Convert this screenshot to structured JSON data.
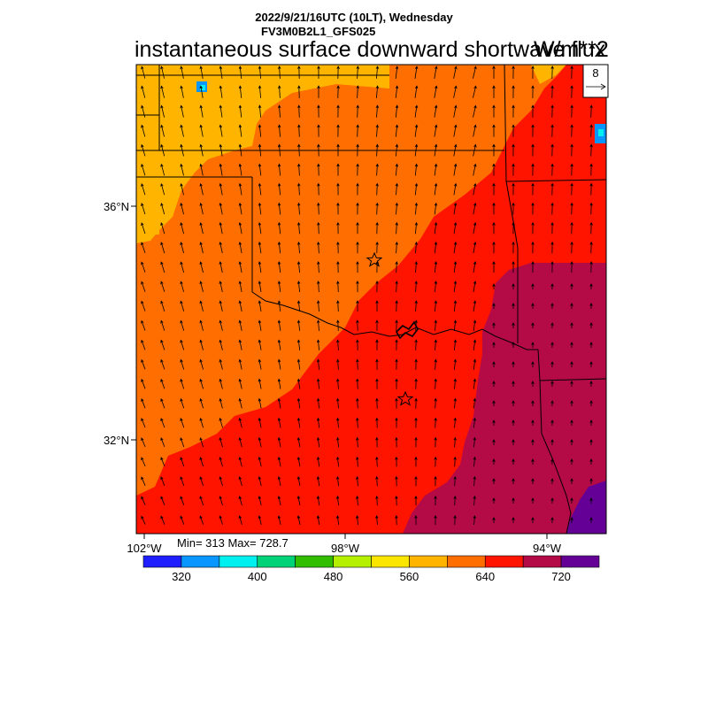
{
  "header": {
    "datetime": "2022/9/21/16UTC (10LT), Wednesday",
    "run": "FV3M0B2L1_GFS025",
    "field": "instantaneous surface downward shortwave flux",
    "units": "W/m**2"
  },
  "vector_ref": {
    "label": "8"
  },
  "axes": {
    "lat_labels": [
      "36°N",
      "32°N"
    ],
    "lon_labels": [
      "102°W",
      "98°W",
      "94°W"
    ]
  },
  "stats": {
    "text": "Min= 313 Max= 728.7",
    "min": 313,
    "max": 728.7
  },
  "colorbar": {
    "colors": [
      "#1e1eff",
      "#0a96ff",
      "#00f0f0",
      "#00d278",
      "#32be00",
      "#b4f000",
      "#fae600",
      "#ffb400",
      "#ff6e00",
      "#ff1400",
      "#b40a46",
      "#640096"
    ],
    "labels": [
      "320",
      "400",
      "480",
      "560",
      "640",
      "720"
    ]
  },
  "map": {
    "region_colors": {
      "light_orange": "#ffb400",
      "orange": "#ff6e00",
      "red": "#ff1400",
      "crimson": "#b40a46",
      "purple": "#640096",
      "blue_patch": "#0a96ff",
      "cyan_patch": "#00f0f0"
    },
    "markers": [
      "star",
      "star"
    ]
  }
}
